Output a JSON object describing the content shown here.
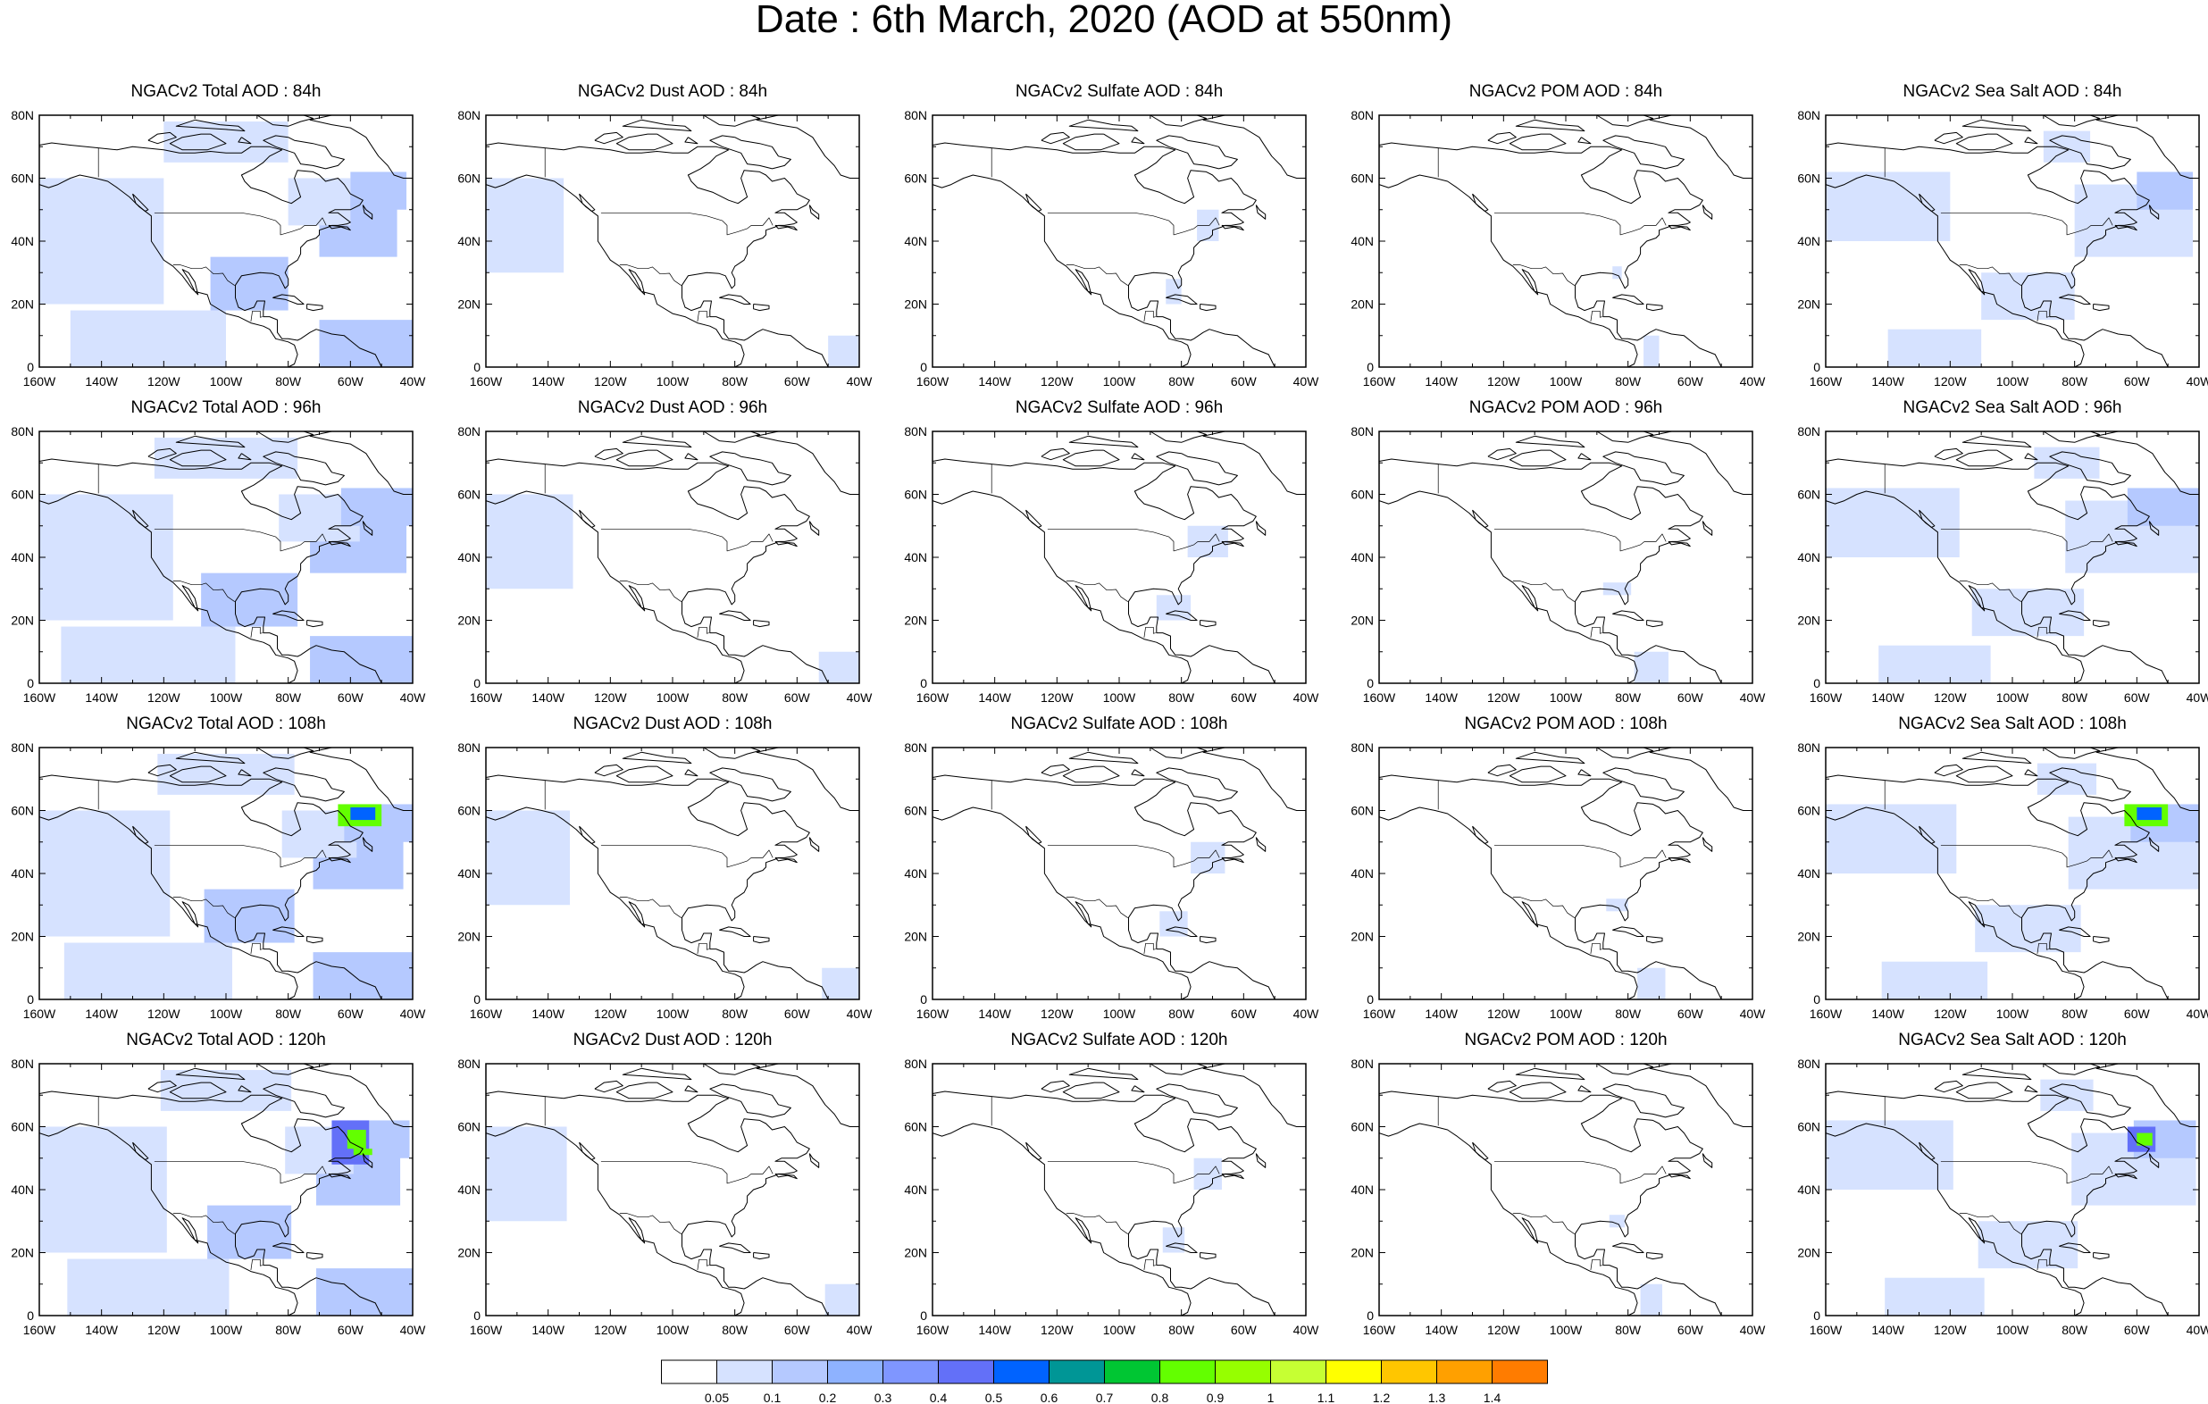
{
  "title": "Date : 6th March, 2020 (AOD at 550nm)",
  "panels": [
    [
      "NGACv2 Total AOD : 84h",
      "NGACv2 Dust AOD : 84h",
      "NGACv2 Sulfate AOD : 84h",
      "NGACv2 POM AOD : 84h",
      "NGACv2 Sea Salt AOD : 84h"
    ],
    [
      "NGACv2 Total AOD : 96h",
      "NGACv2 Dust AOD : 96h",
      "NGACv2 Sulfate AOD : 96h",
      "NGACv2 POM AOD : 96h",
      "NGACv2 Sea Salt AOD : 96h"
    ],
    [
      "NGACv2 Total AOD : 108h",
      "NGACv2 Dust AOD : 108h",
      "NGACv2 Sulfate AOD : 108h",
      "NGACv2 POM AOD : 108h",
      "NGACv2 Sea Salt AOD : 108h"
    ],
    [
      "NGACv2 Total AOD : 120h",
      "NGACv2 Dust AOD : 120h",
      "NGACv2 Sulfate AOD : 120h",
      "NGACv2 POM AOD : 120h",
      "NGACv2 Sea Salt  AOD : 120h"
    ]
  ],
  "axes": {
    "lon_labels": [
      "160W",
      "140W",
      "120W",
      "100W",
      "80W",
      "60W",
      "40W"
    ],
    "lat_labels": [
      "0",
      "20N",
      "40N",
      "60N",
      "80N"
    ],
    "lon_range": [
      -160,
      -40
    ],
    "lat_range": [
      0,
      80
    ]
  },
  "colorbar": {
    "labels": [
      "0.05",
      "0.1",
      "0.2",
      "0.3",
      "0.4",
      "0.5",
      "0.6",
      "0.7",
      "0.8",
      "0.9",
      "1",
      "1.1",
      "1.2",
      "1.3",
      "1.4"
    ],
    "colors": [
      "#ffffff",
      "#d6e2ff",
      "#b5c9ff",
      "#8eb2ff",
      "#7f96ff",
      "#6370f8",
      "#0063ff",
      "#009696",
      "#00c633",
      "#63ff00",
      "#96ff00",
      "#c6ff33",
      "#ffff00",
      "#ffc600",
      "#ffa000",
      "#ff7c00",
      "#ff1900"
    ]
  }
}
